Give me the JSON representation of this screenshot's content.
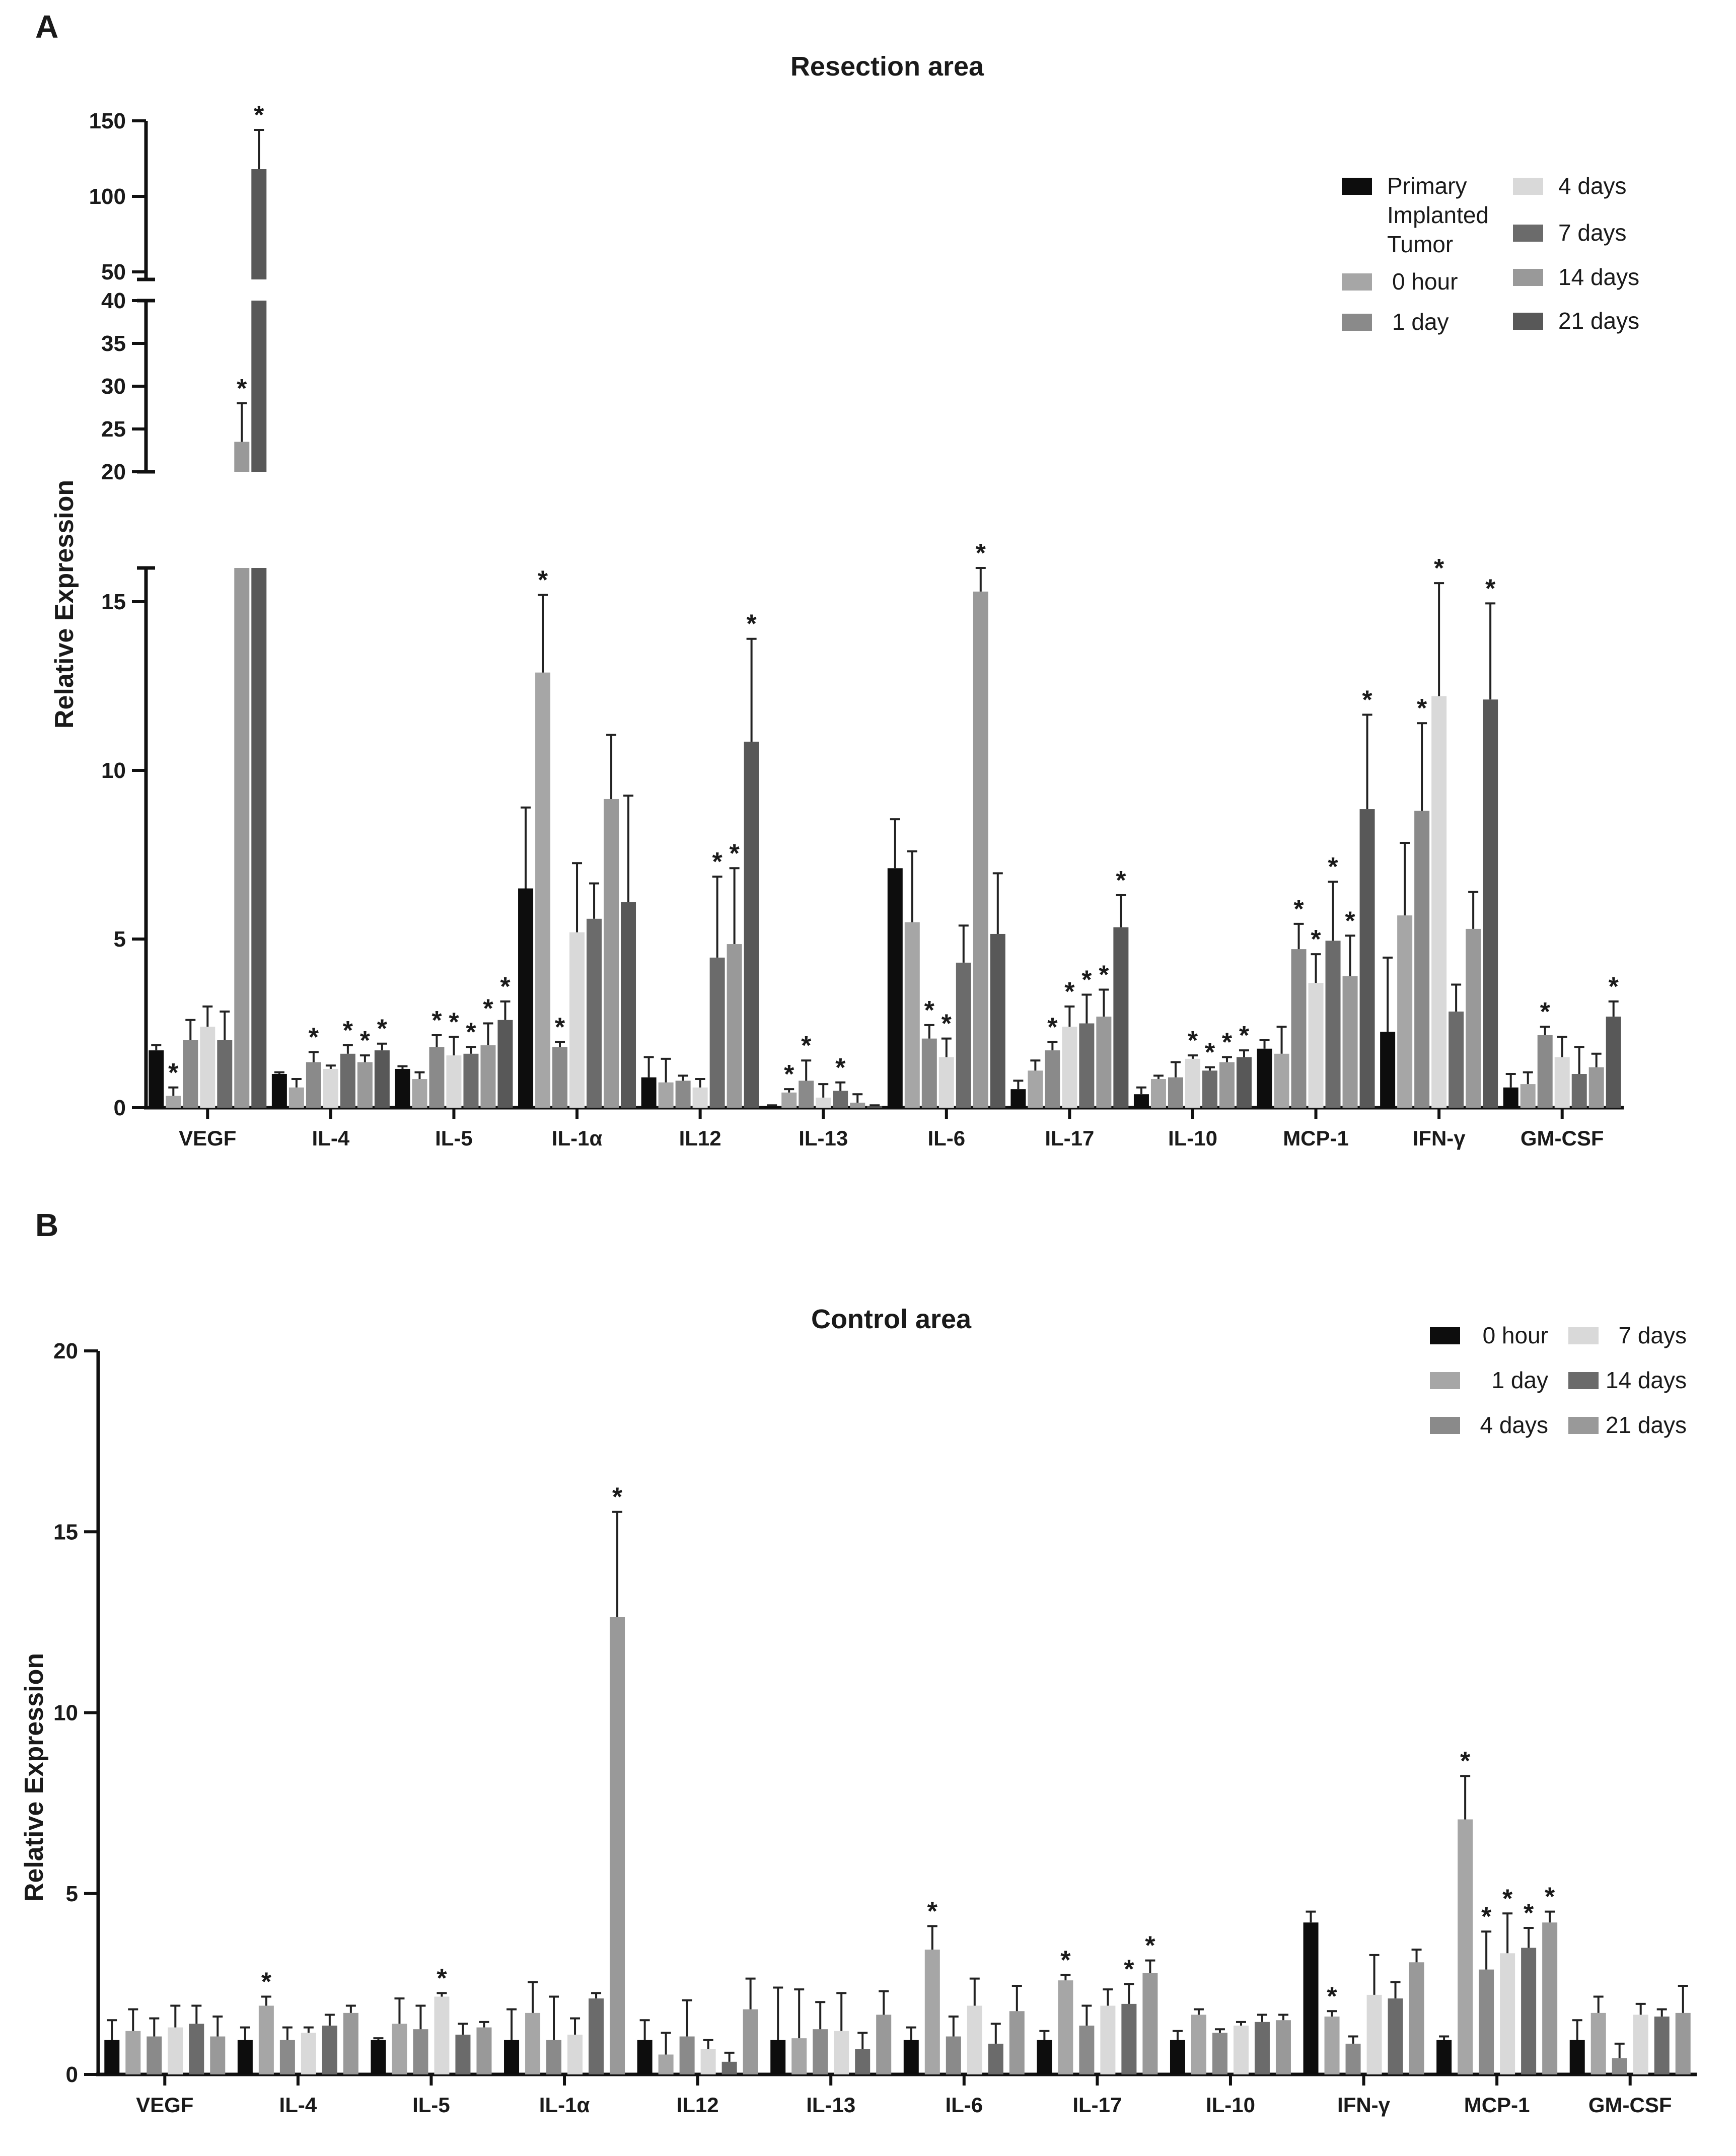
{
  "chart_data": [
    {
      "panel": "A",
      "type": "bar",
      "title": "Resection area",
      "ylabel": "Relative Expression",
      "xlabel": "",
      "categories": [
        "VEGF",
        "IL-4",
        "IL-5",
        "IL-1α",
        "IL12",
        "IL-13",
        "IL-6",
        "IL-17",
        "IL-10",
        "MCP-1",
        "IFN-γ",
        "GM-CSF"
      ],
      "y_segments": [
        {
          "range": [
            0,
            16
          ],
          "ticks": [
            0,
            5,
            10,
            15
          ]
        },
        {
          "range": [
            20,
            40
          ],
          "ticks": [
            20,
            25,
            30,
            35,
            40
          ]
        },
        {
          "range": [
            45,
            150
          ],
          "ticks": [
            50,
            100,
            150
          ]
        }
      ],
      "series": [
        {
          "name": "Primary Implanted Tumor",
          "color": "#0d0d0d",
          "values": [
            1.7,
            1.0,
            1.15,
            6.5,
            0.9,
            0.05,
            7.1,
            0.55,
            0.4,
            1.75,
            2.25,
            0.6
          ],
          "errors": [
            0.15,
            0.05,
            0.08,
            2.4,
            0.6,
            0.02,
            1.45,
            0.25,
            0.2,
            0.25,
            2.2,
            0.4
          ],
          "stars": [
            false,
            false,
            false,
            false,
            false,
            false,
            false,
            false,
            false,
            false,
            false,
            false
          ]
        },
        {
          "name": "0 hour",
          "color": "#a6a6a6",
          "values": [
            0.35,
            0.6,
            0.85,
            12.9,
            0.75,
            0.45,
            5.5,
            1.1,
            0.85,
            1.6,
            5.7,
            0.7
          ],
          "errors": [
            0.25,
            0.25,
            0.2,
            2.3,
            0.7,
            0.1,
            2.1,
            0.3,
            0.1,
            0.8,
            2.15,
            0.35
          ],
          "stars": [
            true,
            false,
            false,
            true,
            false,
            true,
            false,
            false,
            false,
            false,
            false,
            false
          ]
        },
        {
          "name": "1 day",
          "color": "#8a8a8a",
          "values": [
            2.0,
            1.35,
            1.8,
            1.8,
            0.8,
            0.8,
            2.05,
            1.7,
            0.9,
            4.7,
            8.8,
            2.15
          ],
          "errors": [
            0.6,
            0.3,
            0.35,
            0.15,
            0.15,
            0.6,
            0.4,
            0.25,
            0.45,
            0.75,
            2.6,
            0.25
          ],
          "stars": [
            false,
            true,
            true,
            true,
            false,
            true,
            true,
            true,
            false,
            true,
            true,
            true
          ]
        },
        {
          "name": "4 days",
          "color": "#d9d9d9",
          "values": [
            2.4,
            1.15,
            1.55,
            5.2,
            0.6,
            0.3,
            1.5,
            2.4,
            1.45,
            3.7,
            12.2,
            1.5
          ],
          "errors": [
            0.6,
            0.1,
            0.55,
            2.05,
            0.25,
            0.4,
            0.55,
            0.6,
            0.1,
            0.85,
            3.35,
            0.6
          ],
          "stars": [
            false,
            false,
            true,
            false,
            false,
            false,
            true,
            true,
            true,
            true,
            true,
            false
          ]
        },
        {
          "name": "7 days",
          "color": "#6b6b6b",
          "values": [
            2.0,
            1.6,
            1.6,
            5.6,
            4.45,
            0.5,
            4.3,
            2.5,
            1.1,
            4.95,
            2.85,
            1.0
          ],
          "errors": [
            0.85,
            0.25,
            0.2,
            1.05,
            2.4,
            0.25,
            1.1,
            0.85,
            0.1,
            1.75,
            0.8,
            0.8
          ],
          "stars": [
            false,
            true,
            true,
            false,
            true,
            true,
            false,
            true,
            true,
            true,
            false,
            false
          ]
        },
        {
          "name": "14 days",
          "color": "#999999",
          "values": [
            23.5,
            1.35,
            1.85,
            9.15,
            4.85,
            0.15,
            15.3,
            2.7,
            1.35,
            3.9,
            5.3,
            1.2
          ],
          "errors": [
            4.5,
            0.2,
            0.65,
            1.9,
            2.25,
            0.25,
            0.7,
            0.8,
            0.15,
            1.2,
            1.1,
            0.4
          ],
          "stars": [
            true,
            true,
            true,
            false,
            true,
            false,
            true,
            true,
            true,
            true,
            false,
            false
          ]
        },
        {
          "name": "21 days",
          "color": "#585858",
          "values": [
            118.0,
            1.7,
            2.6,
            6.1,
            10.85,
            0.05,
            5.15,
            5.35,
            1.5,
            8.85,
            12.1,
            2.7
          ],
          "errors": [
            26,
            0.2,
            0.55,
            3.15,
            3.05,
            0.02,
            1.8,
            0.95,
            0.2,
            2.8,
            2.85,
            0.45
          ],
          "stars": [
            true,
            true,
            true,
            false,
            true,
            false,
            false,
            true,
            true,
            true,
            true,
            true
          ]
        }
      ],
      "legend_columns": [
        [
          "Primary Implanted Tumor",
          "0 hour",
          "1 day"
        ],
        [
          "4 days",
          "7 days",
          "14 days",
          "21 days"
        ]
      ],
      "legend_position": "top-right"
    },
    {
      "panel": "B",
      "type": "bar",
      "title": "Control area",
      "ylabel": "Relative Expression",
      "xlabel": "",
      "categories": [
        "VEGF",
        "IL-4",
        "IL-5",
        "IL-1α",
        "IL12",
        "IL-13",
        "IL-6",
        "IL-17",
        "IL-10",
        "IFN-γ",
        "MCP-1",
        "GM-CSF"
      ],
      "ylim": [
        0,
        20
      ],
      "yticks": [
        0,
        5,
        10,
        15,
        20
      ],
      "series": [
        {
          "name": "0 hour",
          "color": "#0d0d0d",
          "values": [
            0.95,
            0.95,
            0.95,
            0.95,
            0.95,
            0.95,
            0.95,
            0.95,
            0.95,
            4.2,
            0.95,
            0.95
          ],
          "errors": [
            0.55,
            0.35,
            0.05,
            0.85,
            0.55,
            1.45,
            0.35,
            0.25,
            0.25,
            0.3,
            0.1,
            0.55
          ],
          "stars": [
            false,
            false,
            false,
            false,
            false,
            false,
            false,
            false,
            false,
            false,
            false,
            false
          ]
        },
        {
          "name": "1 day",
          "color": "#a6a6a6",
          "values": [
            1.2,
            1.9,
            1.4,
            1.7,
            0.55,
            1.0,
            3.45,
            2.6,
            1.65,
            1.6,
            7.05,
            1.7
          ],
          "errors": [
            0.6,
            0.25,
            0.7,
            0.85,
            0.6,
            1.35,
            0.65,
            0.15,
            0.15,
            0.15,
            1.2,
            0.45
          ],
          "stars": [
            false,
            true,
            false,
            false,
            false,
            false,
            true,
            true,
            false,
            true,
            true,
            false
          ]
        },
        {
          "name": "4 days",
          "color": "#8a8a8a",
          "values": [
            1.05,
            0.95,
            1.25,
            0.95,
            1.05,
            1.25,
            1.05,
            1.35,
            1.15,
            0.85,
            2.9,
            0.45
          ],
          "errors": [
            0.5,
            0.35,
            0.65,
            1.2,
            1.0,
            0.75,
            0.55,
            0.55,
            0.1,
            0.2,
            1.05,
            0.4
          ],
          "stars": [
            false,
            false,
            false,
            false,
            false,
            false,
            false,
            false,
            false,
            false,
            true,
            false
          ]
        },
        {
          "name": "7 days",
          "color": "#d9d9d9",
          "values": [
            1.3,
            1.15,
            2.15,
            1.1,
            0.7,
            1.2,
            1.9,
            1.9,
            1.35,
            2.2,
            3.35,
            1.65
          ],
          "errors": [
            0.6,
            0.15,
            0.1,
            0.45,
            0.25,
            1.05,
            0.75,
            0.45,
            0.1,
            1.1,
            1.1,
            0.3
          ],
          "stars": [
            false,
            false,
            true,
            false,
            false,
            false,
            false,
            false,
            false,
            false,
            true,
            false
          ]
        },
        {
          "name": "14 days",
          "color": "#6b6b6b",
          "values": [
            1.4,
            1.35,
            1.1,
            2.1,
            0.35,
            0.7,
            0.85,
            1.95,
            1.45,
            2.1,
            3.5,
            1.6
          ],
          "errors": [
            0.5,
            0.3,
            0.3,
            0.15,
            0.25,
            0.45,
            0.55,
            0.55,
            0.2,
            0.45,
            0.55,
            0.2
          ],
          "stars": [
            false,
            false,
            false,
            false,
            false,
            false,
            false,
            true,
            false,
            false,
            true,
            false
          ]
        },
        {
          "name": "21 days",
          "color": "#999999",
          "values": [
            1.05,
            1.7,
            1.3,
            12.65,
            1.8,
            1.65,
            1.75,
            2.8,
            1.5,
            3.1,
            4.2,
            1.7
          ],
          "errors": [
            0.55,
            0.2,
            0.15,
            2.9,
            0.85,
            0.65,
            0.7,
            0.35,
            0.15,
            0.35,
            0.3,
            0.75
          ],
          "stars": [
            false,
            false,
            false,
            true,
            false,
            false,
            false,
            true,
            false,
            false,
            true,
            false
          ]
        }
      ],
      "legend_columns": [
        [
          "0 hour",
          "1 day",
          "4 days"
        ],
        [
          "7 days",
          "14 days",
          "21 days"
        ]
      ],
      "legend_position": "top-right"
    }
  ],
  "labels": {
    "panel_a": "A",
    "panel_b": "B",
    "star_symbol": "*"
  }
}
